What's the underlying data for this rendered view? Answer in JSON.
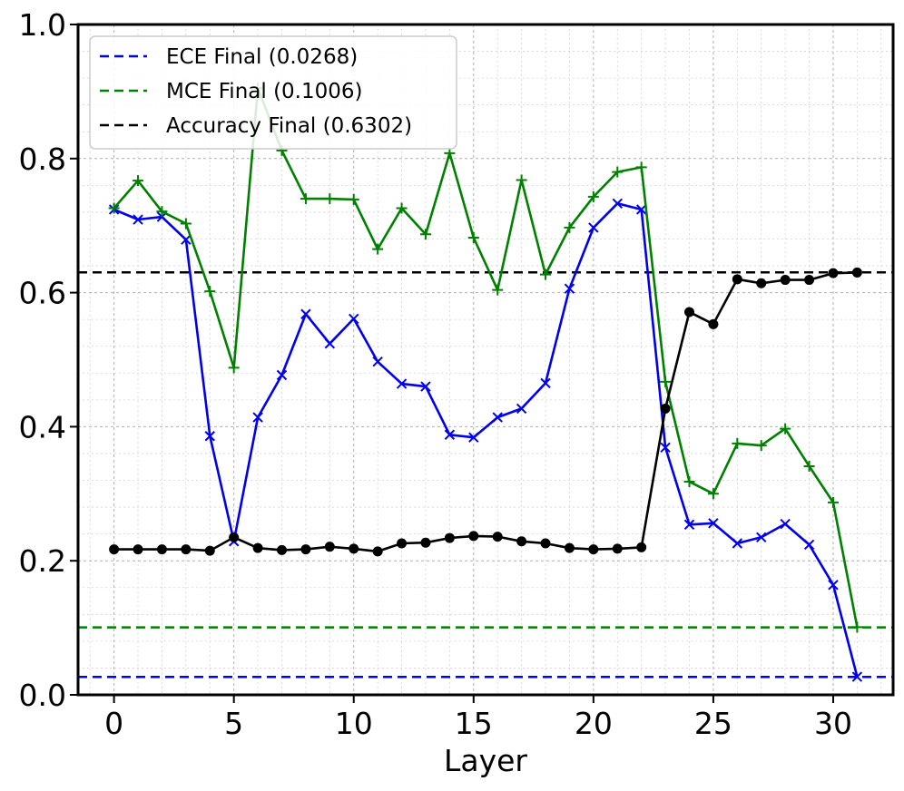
{
  "chart_data": {
    "type": "line",
    "xlabel": "Layer",
    "ylabel": "",
    "xlim": [
      -1.5,
      32.5
    ],
    "ylim": [
      0.0,
      1.0
    ],
    "xticks": [
      0,
      5,
      10,
      15,
      20,
      25,
      30
    ],
    "yticks": [
      0.0,
      0.2,
      0.4,
      0.6,
      0.8,
      1.0
    ],
    "xtick_labels": [
      "0",
      "5",
      "10",
      "15",
      "20",
      "25",
      "30"
    ],
    "ytick_labels": [
      "0.0",
      "0.2",
      "0.4",
      "0.6",
      "0.8",
      "1.0"
    ],
    "grid": true,
    "legend_position": "top-left",
    "x": [
      0,
      1,
      2,
      3,
      4,
      5,
      6,
      7,
      8,
      9,
      10,
      11,
      12,
      13,
      14,
      15,
      16,
      17,
      18,
      19,
      20,
      21,
      22,
      23,
      24,
      25,
      26,
      27,
      28,
      29,
      30,
      31
    ],
    "series": [
      {
        "key": "ece",
        "color": "#0000ee",
        "marker": "x",
        "values": [
          0.724,
          0.709,
          0.713,
          0.679,
          0.386,
          0.229,
          0.414,
          0.477,
          0.568,
          0.524,
          0.561,
          0.497,
          0.464,
          0.46,
          0.388,
          0.384,
          0.414,
          0.427,
          0.465,
          0.606,
          0.697,
          0.733,
          0.724,
          0.369,
          0.254,
          0.256,
          0.226,
          0.235,
          0.255,
          0.224,
          0.164,
          0.027
        ]
      },
      {
        "key": "mce",
        "color": "#008000",
        "marker": "+",
        "values": [
          0.726,
          0.767,
          0.721,
          0.703,
          0.602,
          0.488,
          0.905,
          0.812,
          0.74,
          0.74,
          0.739,
          0.665,
          0.726,
          0.687,
          0.808,
          0.682,
          0.604,
          0.768,
          0.627,
          0.697,
          0.743,
          0.78,
          0.787,
          0.467,
          0.318,
          0.3,
          0.375,
          0.372,
          0.397,
          0.341,
          0.287,
          0.101
        ]
      },
      {
        "key": "accuracy",
        "color": "#000000",
        "marker": "o",
        "values": [
          0.217,
          0.217,
          0.217,
          0.217,
          0.215,
          0.235,
          0.219,
          0.216,
          0.217,
          0.221,
          0.218,
          0.214,
          0.226,
          0.227,
          0.234,
          0.237,
          0.236,
          0.229,
          0.226,
          0.219,
          0.217,
          0.218,
          0.22,
          0.427,
          0.571,
          0.553,
          0.62,
          0.614,
          0.619,
          0.619,
          0.629,
          0.63
        ]
      }
    ],
    "reference_lines": [
      {
        "label": "ECE Final (0.0268)",
        "y": 0.0268,
        "color": "#0000ee"
      },
      {
        "label": "MCE Final (0.1006)",
        "y": 0.1006,
        "color": "#008000"
      },
      {
        "label": "Accuracy Final (0.6302)",
        "y": 0.6302,
        "color": "#000000"
      }
    ]
  }
}
